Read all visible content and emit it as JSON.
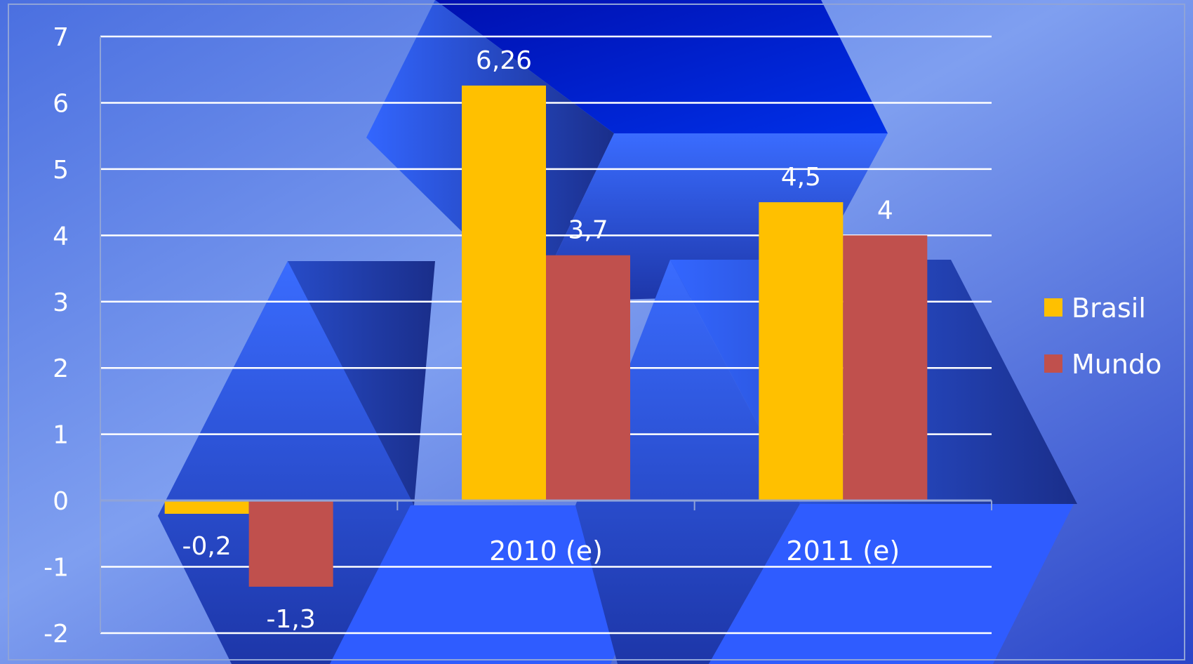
{
  "chart_data": {
    "type": "bar",
    "categories": [
      "",
      "2010 (e)",
      "2011 (e)"
    ],
    "series": [
      {
        "name": "Brasil",
        "values": [
          -0.2,
          6.26,
          4.5
        ],
        "labels": [
          "-0,2",
          "6,26",
          "4,5"
        ],
        "color": "#ffc000"
      },
      {
        "name": "Mundo",
        "values": [
          -1.3,
          3.7,
          4
        ],
        "labels": [
          "-1,3",
          "3,7",
          "4"
        ],
        "color": "#c0504d"
      }
    ],
    "ylim": [
      -2,
      7
    ],
    "y_ticks": [
      7,
      6,
      5,
      4,
      3,
      2,
      1,
      0,
      -1,
      -2
    ],
    "grid": true,
    "legend_position": "right",
    "title": "",
    "xlabel": "",
    "ylabel": ""
  },
  "colors": {
    "background": "#2f4fd0",
    "gridline": "#ffffff",
    "axis": "#8fa3d8"
  }
}
